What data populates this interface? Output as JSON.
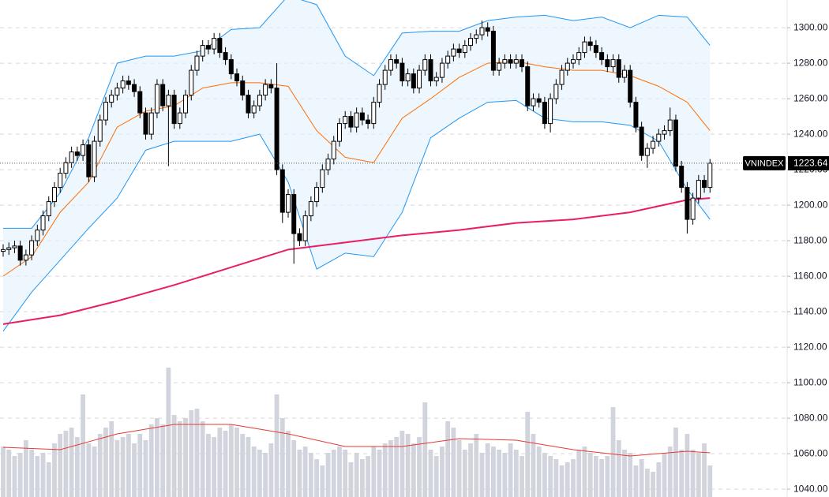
{
  "chart_data": {
    "type": "candlestick",
    "symbol": "VNINDEX",
    "last_price": 1223.64,
    "ylim": [
      1035.6,
      1315.6
    ],
    "yticks": [
      {
        "value": 1040,
        "label": "1040.00"
      },
      {
        "value": 1060,
        "label": "1060.00"
      },
      {
        "value": 1080,
        "label": "1080.00"
      },
      {
        "value": 1100,
        "label": "1100.00"
      },
      {
        "value": 1120,
        "label": "1120.00"
      },
      {
        "value": 1140,
        "label": "1140.00"
      },
      {
        "value": 1160,
        "label": "1160.00"
      },
      {
        "value": 1180,
        "label": "1180.00"
      },
      {
        "value": 1200,
        "label": "1200.00"
      },
      {
        "value": 1220,
        "label": "1220.00"
      },
      {
        "value": 1240,
        "label": "1240.00"
      },
      {
        "value": 1260,
        "label": "1260.00"
      },
      {
        "value": 1280,
        "label": "1280.00"
      },
      {
        "value": 1300,
        "label": "1300.00"
      }
    ],
    "grid": true,
    "up_color": "#ffffff",
    "down_color": "#000000",
    "open": [
      1174,
      1175,
      1176,
      1177,
      1169,
      1172,
      1180,
      1186,
      1194,
      1202,
      1210,
      1218,
      1224,
      1230,
      1228,
      1234,
      1216,
      1236,
      1248,
      1258,
      1262,
      1266,
      1270,
      1268,
      1264,
      1252,
      1240,
      1252,
      1268,
      1256,
      1262,
      1246,
      1252,
      1262,
      1276,
      1284,
      1290,
      1288,
      1294,
      1286,
      1282,
      1274,
      1270,
      1262,
      1252,
      1256,
      1262,
      1268,
      1266,
      1220,
      1196,
      1206,
      1184,
      1180,
      1194,
      1202,
      1210,
      1220,
      1226,
      1236,
      1246,
      1250,
      1244,
      1252,
      1248,
      1246,
      1258,
      1268,
      1276,
      1282,
      1280,
      1270,
      1274,
      1266,
      1276,
      1282,
      1270,
      1272,
      1280,
      1284,
      1288,
      1286,
      1290,
      1294,
      1296,
      1300,
      1298,
      1276,
      1280,
      1282,
      1280,
      1282,
      1278,
      1256,
      1260,
      1258,
      1246,
      1260,
      1268,
      1276,
      1280,
      1282,
      1286,
      1292,
      1290,
      1286,
      1282,
      1278,
      1282,
      1272,
      1276,
      1258,
      1244,
      1228,
      1232,
      1236,
      1240,
      1242,
      1248,
      1222,
      1210,
      1192,
      1204,
      1214,
      1210
    ],
    "high": [
      1178,
      1179,
      1180,
      1180,
      1175,
      1183,
      1189,
      1197,
      1205,
      1213,
      1221,
      1227,
      1233,
      1233,
      1237,
      1237,
      1239,
      1251,
      1261,
      1265,
      1269,
      1273,
      1273,
      1271,
      1267,
      1255,
      1255,
      1271,
      1271,
      1265,
      1265,
      1255,
      1265,
      1279,
      1287,
      1293,
      1293,
      1297,
      1297,
      1289,
      1285,
      1277,
      1273,
      1265,
      1259,
      1265,
      1271,
      1271,
      1280,
      1223,
      1209,
      1209,
      1187,
      1197,
      1205,
      1213,
      1223,
      1229,
      1239,
      1249,
      1253,
      1253,
      1255,
      1255,
      1251,
      1261,
      1271,
      1279,
      1285,
      1285,
      1283,
      1277,
      1277,
      1279,
      1285,
      1285,
      1275,
      1283,
      1287,
      1291,
      1291,
      1293,
      1297,
      1299,
      1304,
      1303,
      1301,
      1283,
      1285,
      1285,
      1285,
      1285,
      1281,
      1263,
      1263,
      1261,
      1263,
      1271,
      1279,
      1283,
      1285,
      1289,
      1295,
      1295,
      1293,
      1289,
      1285,
      1285,
      1285,
      1279,
      1279,
      1261,
      1247,
      1235,
      1239,
      1243,
      1245,
      1255,
      1251,
      1225,
      1213,
      1207,
      1217,
      1217,
      1226
    ],
    "low": [
      1171,
      1172,
      1173,
      1166,
      1166,
      1169,
      1177,
      1183,
      1191,
      1199,
      1207,
      1215,
      1221,
      1225,
      1225,
      1213,
      1213,
      1233,
      1245,
      1255,
      1259,
      1263,
      1265,
      1261,
      1249,
      1237,
      1237,
      1249,
      1253,
      1222,
      1243,
      1243,
      1249,
      1259,
      1273,
      1281,
      1285,
      1285,
      1283,
      1279,
      1271,
      1267,
      1259,
      1249,
      1249,
      1253,
      1259,
      1263,
      1217,
      1190,
      1193,
      1167,
      1177,
      1177,
      1191,
      1199,
      1207,
      1217,
      1223,
      1233,
      1243,
      1241,
      1241,
      1245,
      1243,
      1243,
      1255,
      1265,
      1273,
      1277,
      1267,
      1267,
      1263,
      1263,
      1273,
      1267,
      1267,
      1269,
      1277,
      1281,
      1283,
      1283,
      1287,
      1291,
      1293,
      1295,
      1273,
      1273,
      1277,
      1277,
      1277,
      1275,
      1253,
      1253,
      1255,
      1243,
      1241,
      1257,
      1265,
      1273,
      1277,
      1279,
      1283,
      1287,
      1283,
      1279,
      1275,
      1275,
      1269,
      1269,
      1255,
      1241,
      1225,
      1221,
      1229,
      1233,
      1237,
      1239,
      1219,
      1207,
      1184,
      1189,
      1201,
      1207,
      1207
    ],
    "close": [
      1175,
      1176,
      1177,
      1169,
      1172,
      1180,
      1186,
      1194,
      1202,
      1210,
      1218,
      1224,
      1230,
      1228,
      1234,
      1216,
      1236,
      1248,
      1258,
      1262,
      1266,
      1270,
      1268,
      1264,
      1252,
      1240,
      1252,
      1268,
      1256,
      1262,
      1246,
      1252,
      1262,
      1276,
      1284,
      1290,
      1288,
      1294,
      1286,
      1282,
      1274,
      1270,
      1262,
      1252,
      1256,
      1262,
      1268,
      1266,
      1220,
      1196,
      1206,
      1184,
      1180,
      1194,
      1202,
      1210,
      1220,
      1226,
      1236,
      1246,
      1250,
      1244,
      1252,
      1248,
      1246,
      1258,
      1268,
      1276,
      1282,
      1280,
      1270,
      1274,
      1266,
      1276,
      1282,
      1270,
      1272,
      1280,
      1284,
      1288,
      1286,
      1290,
      1294,
      1296,
      1300,
      1298,
      1276,
      1280,
      1282,
      1280,
      1282,
      1278,
      1256,
      1260,
      1258,
      1246,
      1260,
      1268,
      1276,
      1280,
      1282,
      1286,
      1292,
      1290,
      1286,
      1282,
      1278,
      1282,
      1272,
      1276,
      1258,
      1244,
      1228,
      1232,
      1236,
      1240,
      1242,
      1248,
      1222,
      1210,
      1192,
      1204,
      1214,
      1210,
      1223.64
    ],
    "volume": {
      "color": "#d1d4dc",
      "ylim": [
        0,
        100
      ],
      "values": [
        32,
        30,
        26,
        28,
        36,
        30,
        26,
        28,
        22,
        34,
        40,
        42,
        44,
        38,
        65,
        34,
        32,
        40,
        44,
        48,
        36,
        38,
        40,
        34,
        40,
        36,
        46,
        50,
        46,
        82,
        52,
        48,
        50,
        55,
        56,
        48,
        40,
        38,
        44,
        42,
        46,
        44,
        40,
        38,
        32,
        30,
        28,
        34,
        65,
        50,
        42,
        36,
        30,
        32,
        28,
        24,
        20,
        28,
        30,
        32,
        30,
        22,
        28,
        24,
        26,
        32,
        30,
        34,
        36,
        38,
        42,
        40,
        34,
        38,
        60,
        30,
        26,
        32,
        48,
        44,
        36,
        30,
        34,
        40,
        28,
        34,
        32,
        30,
        28,
        34,
        30,
        26,
        54,
        40,
        32,
        28,
        26,
        24,
        20,
        22,
        24,
        30,
        32,
        28,
        26,
        24,
        26,
        57,
        36,
        30,
        28,
        20,
        24,
        18,
        16,
        22,
        28,
        32,
        44,
        30,
        40,
        30,
        28,
        34,
        20
      ]
    },
    "volume_ma": {
      "color": "#e53935",
      "x": [
        0,
        10,
        20,
        30,
        40,
        50,
        60,
        70,
        80,
        90,
        100,
        110,
        120,
        124
      ],
      "values": [
        31.5,
        30,
        40,
        46,
        46,
        40,
        32,
        32,
        37,
        36,
        30,
        26,
        29,
        28
      ]
    },
    "bollinger": {
      "band_color": "#2196f3",
      "middle_color": "#ff6d00",
      "fill": "#e3f2fd",
      "x": [
        0,
        5,
        10,
        15,
        20,
        25,
        30,
        35,
        40,
        45,
        50,
        55,
        60,
        65,
        70,
        75,
        80,
        85,
        90,
        95,
        100,
        105,
        110,
        115,
        120,
        124
      ],
      "upper": [
        1187,
        1187,
        1207,
        1238,
        1280,
        1284,
        1284,
        1287,
        1299,
        1300,
        1318,
        1313,
        1284,
        1273,
        1297,
        1298,
        1298,
        1304,
        1306,
        1307,
        1304,
        1306,
        1300,
        1307,
        1306,
        1290
      ],
      "middle": [
        1160,
        1171,
        1196,
        1213,
        1244,
        1253,
        1256,
        1266,
        1269,
        1269,
        1267,
        1242,
        1227,
        1224,
        1249,
        1260,
        1272,
        1280,
        1281,
        1278,
        1276,
        1276,
        1273,
        1267,
        1258,
        1242
      ],
      "lower": [
        1129,
        1151,
        1169,
        1187,
        1204,
        1231,
        1236,
        1236,
        1236,
        1240,
        1213,
        1164,
        1173,
        1171,
        1196,
        1238,
        1249,
        1258,
        1259,
        1249,
        1247,
        1247,
        1245,
        1236,
        1209,
        1192
      ]
    },
    "ma200": {
      "color": "#e91e63",
      "x": [
        0,
        10,
        20,
        30,
        40,
        50,
        60,
        70,
        80,
        90,
        100,
        110,
        120,
        124
      ],
      "values": [
        1133,
        1138,
        1146,
        1155,
        1165,
        1175,
        1179,
        1183,
        1186,
        1190,
        1192,
        1196,
        1203,
        1204
      ]
    }
  }
}
